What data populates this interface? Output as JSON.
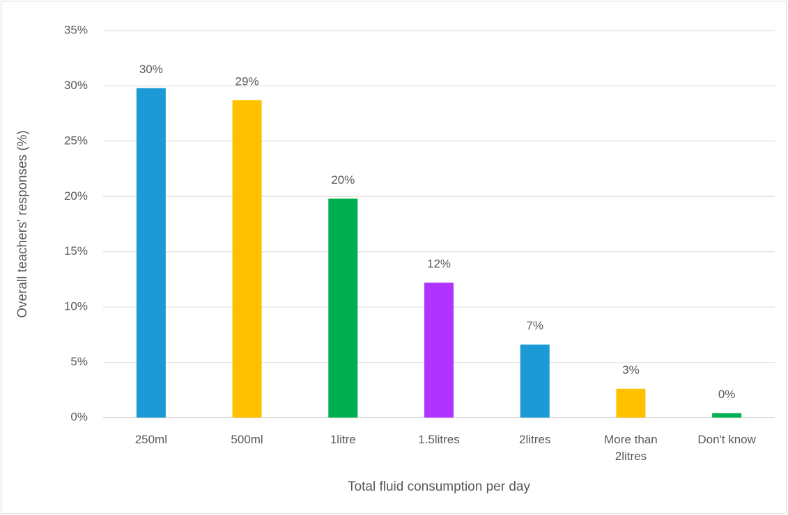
{
  "chart_data": {
    "type": "bar",
    "categories": [
      "250ml",
      "500ml",
      "1litre",
      "1.5litres",
      "2litres",
      "More than 2litres",
      "Don't know"
    ],
    "values": [
      29.8,
      28.7,
      19.8,
      12.2,
      6.6,
      2.6,
      0.4
    ],
    "value_labels": [
      "30%",
      "29%",
      "20%",
      "12%",
      "7%",
      "3%",
      "0%"
    ],
    "colors": [
      "#1b9ad6",
      "#ffc000",
      "#00b050",
      "#b133ff",
      "#1b9ad6",
      "#ffc000",
      "#00b050"
    ],
    "x_label": "Total fluid consumption per day",
    "y_label": "Overall teachers' responses (%)",
    "ylim": [
      0,
      35
    ],
    "yticks": [
      {
        "value": 0,
        "label": "0%"
      },
      {
        "value": 5,
        "label": "5%"
      },
      {
        "value": 10,
        "label": "10%"
      },
      {
        "value": 15,
        "label": "15%"
      },
      {
        "value": 20,
        "label": "20%"
      },
      {
        "value": 25,
        "label": "25%"
      },
      {
        "value": 30,
        "label": "30%"
      },
      {
        "value": 35,
        "label": "35%"
      }
    ],
    "grid": true
  }
}
